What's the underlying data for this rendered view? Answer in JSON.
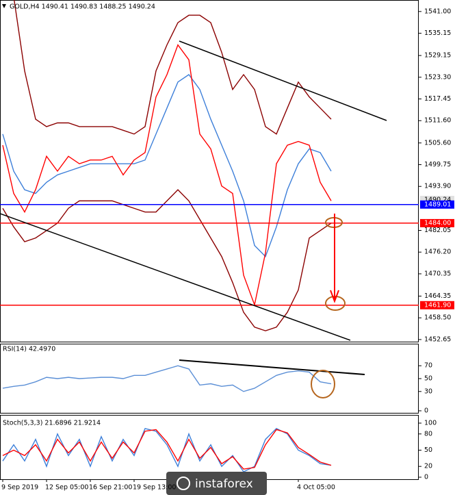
{
  "header": {
    "ohlc": "GOLD,H4 1490.41 1490.83 1488.25 1490.24"
  },
  "watermark": "instaforex",
  "chart_data": [
    {
      "type": "line",
      "ylim": [
        1451.9,
        1544.1
      ],
      "yticks": [
        {
          "value": 1541.0,
          "label": "1541.00"
        },
        {
          "value": 1535.15,
          "label": "1535.15"
        },
        {
          "value": 1529.15,
          "label": "1529.15"
        },
        {
          "value": 1523.3,
          "label": "1523.30"
        },
        {
          "value": 1517.45,
          "label": "1517.45"
        },
        {
          "value": 1511.6,
          "label": "1511.60"
        },
        {
          "value": 1505.6,
          "label": "1505.60"
        },
        {
          "value": 1499.75,
          "label": "1499.75"
        },
        {
          "value": 1493.9,
          "label": "1493.90"
        },
        {
          "value": 1482.05,
          "label": "1482.05"
        },
        {
          "value": 1476.2,
          "label": "1476.20"
        },
        {
          "value": 1470.35,
          "label": "1470.35"
        },
        {
          "value": 1464.35,
          "label": "1464.35"
        },
        {
          "value": 1458.5,
          "label": "1458.50"
        },
        {
          "value": 1452.65,
          "label": "1452.65"
        }
      ],
      "price_label": {
        "value": 1490.24,
        "label": "1490.24"
      },
      "levels": [
        {
          "value": 1489.01,
          "label": "1489.01",
          "color": "#0000ff"
        },
        {
          "value": 1484.0,
          "label": "1484.00",
          "color": "#ff0000"
        },
        {
          "value": 1461.9,
          "label": "1461.90",
          "color": "#ff0000"
        }
      ],
      "series": [
        {
          "color": "#8b0000",
          "values": [
            1546,
            1545,
            1525,
            1512,
            1510,
            1511,
            1511,
            1510,
            1510,
            1510,
            1510,
            1509,
            1508,
            1510,
            1525,
            1532,
            1538,
            1540,
            1540,
            1538,
            1530,
            1520,
            1524,
            1520,
            1510,
            1508,
            1515,
            1522,
            1518,
            1515,
            1512
          ]
        },
        {
          "color": "#8b0000",
          "values": [
            1488,
            1483,
            1479,
            1480,
            1482,
            1484,
            1488,
            1490,
            1490,
            1490,
            1490,
            1489,
            1488,
            1487,
            1487,
            1490,
            1493,
            1490,
            1485,
            1480,
            1475,
            1468,
            1460,
            1456,
            1455,
            1456,
            1460,
            1466,
            1480,
            1482,
            1484
          ]
        },
        {
          "color": "#3d7fd9",
          "values": [
            1508,
            1498,
            1493,
            1492,
            1495,
            1497,
            1498,
            1499,
            1500,
            1500,
            1500,
            1500,
            1500,
            1501,
            1508,
            1515,
            1522,
            1524,
            1520,
            1512,
            1505,
            1498,
            1490,
            1478,
            1475,
            1483,
            1493,
            1500,
            1504,
            1503,
            1498
          ]
        },
        {
          "color": "#ff0000",
          "values": [
            1505,
            1492,
            1487,
            1493,
            1502,
            1498,
            1502,
            1500,
            1501,
            1501,
            1502,
            1497,
            1501,
            1503,
            1518,
            1524,
            1532,
            1528,
            1508,
            1504,
            1494,
            1492,
            1470,
            1462,
            1476,
            1500,
            1505,
            1506,
            1505,
            1495,
            1490
          ]
        }
      ]
    },
    {
      "type": "line",
      "title": "RSI(14) 42.4970",
      "ylim": [
        0,
        100
      ],
      "yticks": [
        70,
        50,
        30,
        0
      ],
      "series": [
        {
          "color": "#5b8fd6",
          "values": [
            35,
            38,
            40,
            45,
            52,
            50,
            52,
            50,
            51,
            52,
            52,
            50,
            55,
            55,
            60,
            65,
            70,
            65,
            40,
            42,
            38,
            40,
            30,
            35,
            45,
            55,
            60,
            62,
            60,
            45,
            42
          ]
        }
      ]
    },
    {
      "type": "line",
      "title": "Stoch(5,3,3) 21.6896 21.9214",
      "ylim": [
        0,
        100
      ],
      "yticks": [
        100,
        80,
        50,
        20,
        0
      ],
      "categories": [
        "9 Sep 2019",
        null,
        null,
        null,
        "12 Sep 05:00",
        null,
        null,
        null,
        "16 Sep 21:00",
        null,
        null,
        null,
        "19 Sep 13:00",
        null,
        null,
        null,
        null,
        null,
        null,
        null,
        null,
        null,
        null,
        null,
        null,
        null,
        null,
        "4 Oct 05:00",
        null,
        null,
        null
      ],
      "series": [
        {
          "color": "#3d7fd9",
          "values": [
            30,
            60,
            30,
            70,
            20,
            80,
            40,
            70,
            20,
            75,
            30,
            70,
            40,
            90,
            85,
            60,
            20,
            80,
            30,
            60,
            20,
            40,
            10,
            20,
            70,
            90,
            80,
            50,
            40,
            25,
            22
          ]
        },
        {
          "color": "#ff0000",
          "values": [
            40,
            50,
            40,
            60,
            30,
            70,
            45,
            65,
            30,
            65,
            35,
            65,
            45,
            85,
            88,
            65,
            30,
            70,
            35,
            55,
            25,
            38,
            15,
            18,
            60,
            88,
            82,
            55,
            42,
            28,
            22
          ]
        }
      ]
    }
  ]
}
